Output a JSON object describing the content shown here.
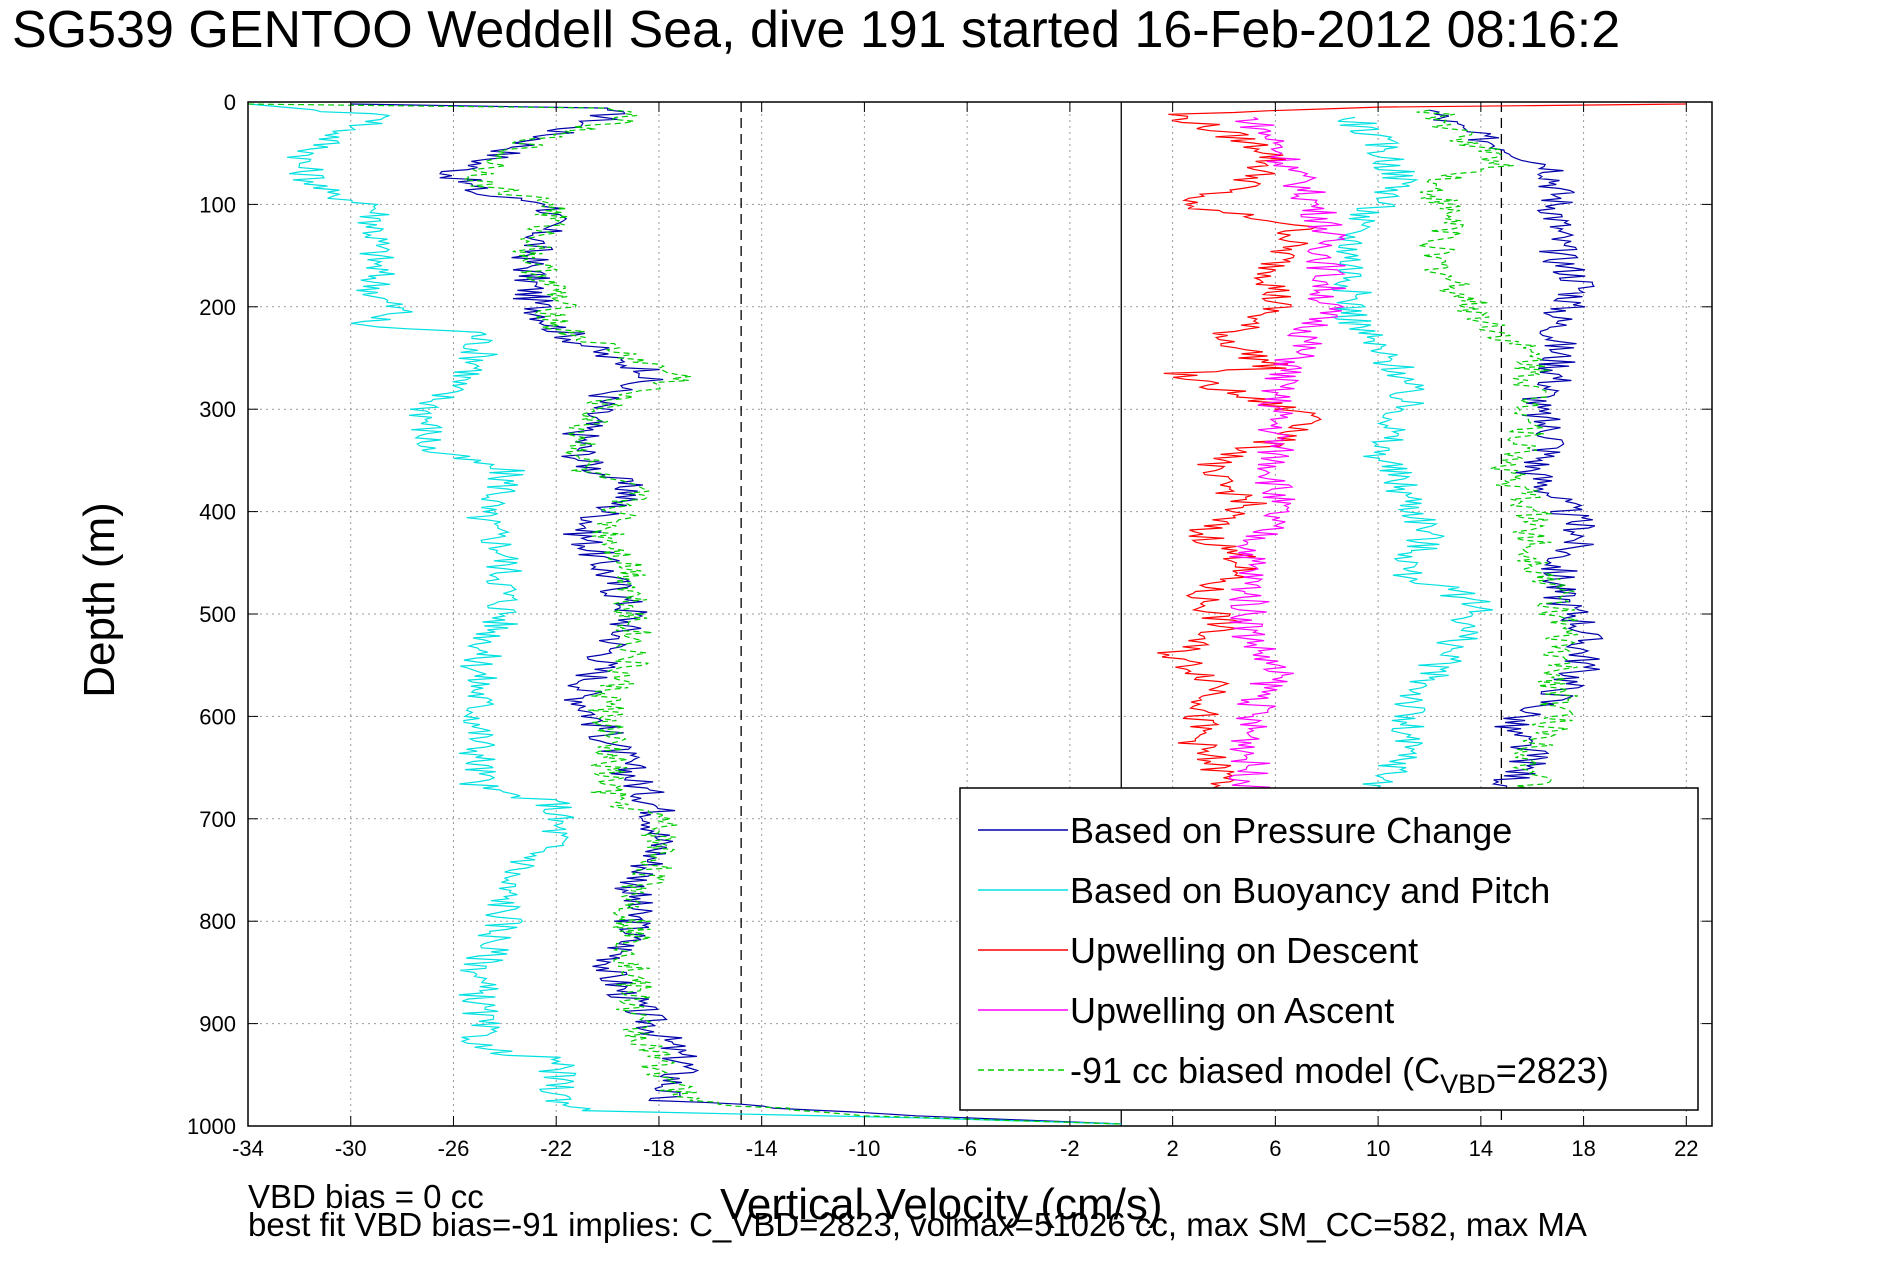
{
  "title": "SG539 GENTOO Weddell Sea, dive 191 started 16-Feb-2012 08:16:2",
  "footer": {
    "line1": "VBD bias = 0 cc",
    "line2": "best fit VBD bias=-91 implies: C_VBD=2823, volmax=51026 cc, max SM_CC=582, max MA"
  },
  "chart_data": {
    "type": "line",
    "xlabel": "Vertical Velocity (cm/s)",
    "ylabel": "Depth (m)",
    "xlim": [
      -34,
      23
    ],
    "ylim": [
      1000,
      0
    ],
    "y_reversed": true,
    "xticks": [
      "-34",
      "-30",
      "-26",
      "-22",
      "-18",
      "-14",
      "-10",
      "-6",
      "-2",
      "2",
      "6",
      "10",
      "14",
      "18",
      "22"
    ],
    "yticks": [
      "0",
      "100",
      "200",
      "300",
      "400",
      "500",
      "600",
      "700",
      "800",
      "900",
      "1000"
    ],
    "grid": true,
    "legend_position": "bottom-right",
    "reference_lines": [
      {
        "x": -14.8,
        "style": "dashed",
        "color": "#000000"
      },
      {
        "x": 14.8,
        "style": "dashed",
        "color": "#000000"
      },
      {
        "x": 0,
        "style": "solid",
        "color": "#000000"
      }
    ],
    "series": [
      {
        "name": "Based on Pressure Change",
        "color": "#0000aa",
        "style": "solid",
        "points": [
          [
            -30,
            2
          ],
          [
            -20,
            6
          ],
          [
            -20,
            15
          ],
          [
            -22,
            30
          ],
          [
            -24,
            50
          ],
          [
            -26,
            70
          ],
          [
            -25,
            90
          ],
          [
            -22,
            100
          ],
          [
            -23,
            150
          ],
          [
            -23,
            190
          ],
          [
            -22,
            220
          ],
          [
            -20,
            250
          ],
          [
            -18,
            265
          ],
          [
            -20,
            285
          ],
          [
            -21,
            320
          ],
          [
            -21,
            350
          ],
          [
            -19,
            380
          ],
          [
            -21,
            420
          ],
          [
            -20,
            460
          ],
          [
            -19,
            500
          ],
          [
            -20,
            540
          ],
          [
            -21,
            580
          ],
          [
            -20,
            620
          ],
          [
            -19,
            660
          ],
          [
            -18,
            690
          ],
          [
            -18,
            730
          ],
          [
            -19,
            770
          ],
          [
            -19,
            810
          ],
          [
            -20,
            850
          ],
          [
            -19,
            880
          ],
          [
            -18,
            910
          ],
          [
            -17,
            940
          ],
          [
            -18,
            975
          ],
          [
            -8,
            990
          ],
          [
            0,
            998
          ],
          [
            12,
            8
          ],
          [
            13,
            25
          ],
          [
            15,
            45
          ],
          [
            17,
            65
          ],
          [
            17,
            100
          ],
          [
            17,
            150
          ],
          [
            18,
            180
          ],
          [
            17,
            210
          ],
          [
            17,
            240
          ],
          [
            17,
            270
          ],
          [
            16,
            300
          ],
          [
            17,
            330
          ],
          [
            16,
            360
          ],
          [
            17,
            390
          ],
          [
            18,
            420
          ],
          [
            17,
            450
          ],
          [
            17,
            480
          ],
          [
            18,
            510
          ],
          [
            18,
            550
          ],
          [
            17,
            580
          ],
          [
            15,
            610
          ],
          [
            16,
            640
          ],
          [
            15,
            670
          ]
        ]
      },
      {
        "name": "Based on Buoyancy and Pitch",
        "color": "#00e0e0",
        "style": "solid",
        "points": [
          [
            -34,
            2
          ],
          [
            -28,
            15
          ],
          [
            -30,
            25
          ],
          [
            -31,
            40
          ],
          [
            -32,
            60
          ],
          [
            -31,
            90
          ],
          [
            -29,
            100
          ],
          [
            -29,
            140
          ],
          [
            -29,
            190
          ],
          [
            -28,
            205
          ],
          [
            -30,
            218
          ],
          [
            -25,
            225
          ],
          [
            -25,
            260
          ],
          [
            -26,
            275
          ],
          [
            -27,
            300
          ],
          [
            -27,
            340
          ],
          [
            -24,
            360
          ],
          [
            -24,
            380
          ],
          [
            -25,
            400
          ],
          [
            -24,
            440
          ],
          [
            -24,
            500
          ],
          [
            -25,
            545
          ],
          [
            -25,
            590
          ],
          [
            -25,
            640
          ],
          [
            -25,
            670
          ],
          [
            -22,
            685
          ],
          [
            -22,
            720
          ],
          [
            -24,
            760
          ],
          [
            -24,
            800
          ],
          [
            -25,
            850
          ],
          [
            -25,
            890
          ],
          [
            -25,
            925
          ],
          [
            -22,
            935
          ],
          [
            -22,
            970
          ],
          [
            -21,
            985
          ],
          [
            -8,
            992
          ],
          [
            0,
            998
          ],
          [
            9,
            15
          ],
          [
            10,
            40
          ],
          [
            11,
            80
          ],
          [
            9,
            120
          ],
          [
            9,
            180
          ],
          [
            9,
            210
          ],
          [
            10,
            245
          ],
          [
            11,
            265
          ],
          [
            11,
            300
          ],
          [
            10,
            340
          ],
          [
            11,
            380
          ],
          [
            12,
            420
          ],
          [
            11,
            460
          ],
          [
            14,
            490
          ],
          [
            13,
            530
          ],
          [
            12,
            560
          ],
          [
            11,
            600
          ],
          [
            11,
            640
          ],
          [
            10,
            670
          ]
        ]
      },
      {
        "name": "Upwelling on Descent",
        "color": "#ff0000",
        "style": "solid",
        "points": [
          [
            22,
            2
          ],
          [
            10,
            5
          ],
          [
            2,
            12
          ],
          [
            4,
            30
          ],
          [
            6,
            50
          ],
          [
            5,
            80
          ],
          [
            2,
            100
          ],
          [
            7,
            120
          ],
          [
            6,
            160
          ],
          [
            6,
            200
          ],
          [
            4,
            230
          ],
          [
            6,
            260
          ],
          [
            2,
            265
          ],
          [
            5,
            290
          ],
          [
            8,
            310
          ],
          [
            5,
            340
          ],
          [
            3,
            360
          ],
          [
            5,
            390
          ],
          [
            3,
            420
          ],
          [
            5,
            450
          ],
          [
            3,
            480
          ],
          [
            4,
            510
          ],
          [
            2,
            540
          ],
          [
            4,
            570
          ],
          [
            3,
            600
          ],
          [
            3,
            630
          ],
          [
            4,
            660
          ],
          [
            4,
            675
          ]
        ]
      },
      {
        "name": "Upwelling on Ascent",
        "color": "#ff00ff",
        "style": "solid",
        "points": [
          [
            5,
            15
          ],
          [
            6,
            40
          ],
          [
            7,
            80
          ],
          [
            8,
            120
          ],
          [
            8,
            160
          ],
          [
            8,
            200
          ],
          [
            7,
            240
          ],
          [
            6,
            280
          ],
          [
            6,
            320
          ],
          [
            6,
            360
          ],
          [
            6,
            400
          ],
          [
            5,
            440
          ],
          [
            5,
            480
          ],
          [
            5,
            520
          ],
          [
            6,
            560
          ],
          [
            5,
            600
          ],
          [
            5,
            640
          ],
          [
            5,
            675
          ]
        ]
      },
      {
        "name": "-91 cc biased model (C_VBD=2823)",
        "color": "#00cc00",
        "style": "dashed",
        "points": [
          [
            -34,
            2
          ],
          [
            -20,
            6
          ],
          [
            -19,
            15
          ],
          [
            -22,
            30
          ],
          [
            -24,
            50
          ],
          [
            -25,
            80
          ],
          [
            -22,
            100
          ],
          [
            -23,
            150
          ],
          [
            -22,
            190
          ],
          [
            -22,
            220
          ],
          [
            -20,
            240
          ],
          [
            -17,
            270
          ],
          [
            -20,
            290
          ],
          [
            -21,
            320
          ],
          [
            -21,
            360
          ],
          [
            -19,
            380
          ],
          [
            -20,
            420
          ],
          [
            -19,
            460
          ],
          [
            -19,
            500
          ],
          [
            -19,
            540
          ],
          [
            -20,
            580
          ],
          [
            -20,
            640
          ],
          [
            -20,
            680
          ],
          [
            -18,
            700
          ],
          [
            -18,
            740
          ],
          [
            -19,
            780
          ],
          [
            -19,
            820
          ],
          [
            -19,
            860
          ],
          [
            -19,
            900
          ],
          [
            -18,
            940
          ],
          [
            -17,
            975
          ],
          [
            -10,
            990
          ],
          [
            0,
            998
          ],
          [
            12,
            8
          ],
          [
            13,
            30
          ],
          [
            15,
            60
          ],
          [
            12,
            80
          ],
          [
            13,
            120
          ],
          [
            12,
            150
          ],
          [
            13,
            180
          ],
          [
            14,
            210
          ],
          [
            16,
            250
          ],
          [
            16,
            280
          ],
          [
            16,
            320
          ],
          [
            15,
            360
          ],
          [
            16,
            400
          ],
          [
            16,
            440
          ],
          [
            17,
            480
          ],
          [
            17,
            520
          ],
          [
            17,
            560
          ],
          [
            17,
            600
          ],
          [
            16,
            640
          ],
          [
            16,
            670
          ]
        ]
      }
    ],
    "legend_labels": {
      "s1": "Based on Pressure Change",
      "s2": "Based on Buoyancy and Pitch",
      "s3": "Upwelling on Descent",
      "s4": "Upwelling on Ascent",
      "s5_prefix": "-91 cc biased model (C",
      "s5_sub": "VBD",
      "s5_suffix": "=2823)"
    }
  }
}
